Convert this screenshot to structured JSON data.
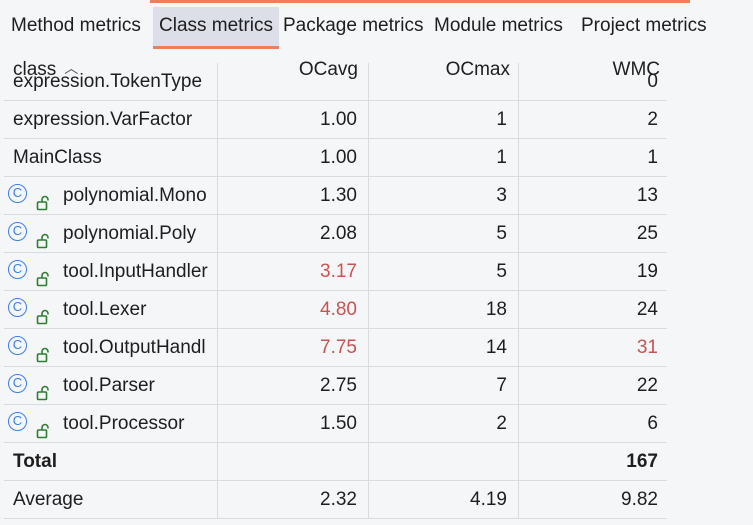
{
  "tabs": [
    {
      "label": "Method metrics",
      "active": false
    },
    {
      "label": "Class metrics",
      "active": true
    },
    {
      "label": "Package metrics",
      "active": false
    },
    {
      "label": "Module metrics",
      "active": false
    },
    {
      "label": "Project metrics",
      "active": false
    }
  ],
  "header": {
    "columns": [
      "class",
      "OCavg",
      "OCmax",
      "WMC"
    ],
    "sort_icon": "chevron-up-icon"
  },
  "rows": [
    {
      "name": "expression.TokenType",
      "ocavg": "",
      "ocmax": "",
      "wmc": "0",
      "icon": false
    },
    {
      "name": "expression.VarFactor",
      "ocavg": "1.00",
      "ocmax": "1",
      "wmc": "2",
      "icon": false
    },
    {
      "name": "MainClass",
      "ocavg": "1.00",
      "ocmax": "1",
      "wmc": "1",
      "icon": false
    },
    {
      "name": "polynomial.Mono",
      "ocavg": "1.30",
      "ocmax": "3",
      "wmc": "13",
      "icon": true
    },
    {
      "name": "polynomial.Poly",
      "ocavg": "2.08",
      "ocmax": "5",
      "wmc": "25",
      "icon": true
    },
    {
      "name": "tool.InputHandler",
      "ocavg": "3.17",
      "ocmax": "5",
      "wmc": "19",
      "icon": true,
      "ocavg_red": true
    },
    {
      "name": "tool.Lexer",
      "ocavg": "4.80",
      "ocmax": "18",
      "wmc": "24",
      "icon": true,
      "ocavg_red": true
    },
    {
      "name": "tool.OutputHandl",
      "ocavg": "7.75",
      "ocmax": "14",
      "wmc": "31",
      "icon": true,
      "ocavg_red": true,
      "wmc_red": true
    },
    {
      "name": "tool.Parser",
      "ocavg": "2.75",
      "ocmax": "7",
      "wmc": "22",
      "icon": true
    },
    {
      "name": "tool.Processor",
      "ocavg": "1.50",
      "ocmax": "2",
      "wmc": "6",
      "icon": true
    }
  ],
  "total": {
    "name": "Total",
    "ocavg": "",
    "ocmax": "",
    "wmc": "167"
  },
  "average": {
    "name": "Average",
    "ocavg": "2.32",
    "ocmax": "4.19",
    "wmc": "9.82"
  },
  "icons": {
    "class_icon": "class-c-icon",
    "class_icon_glyph": "C",
    "access_icon": "unlocked-icon"
  },
  "colors": {
    "accent": "#ee7f5a",
    "warning_value": "#c75450",
    "class_icon": "#3d7de8",
    "active_tab_bg": "#dcdfe8"
  }
}
